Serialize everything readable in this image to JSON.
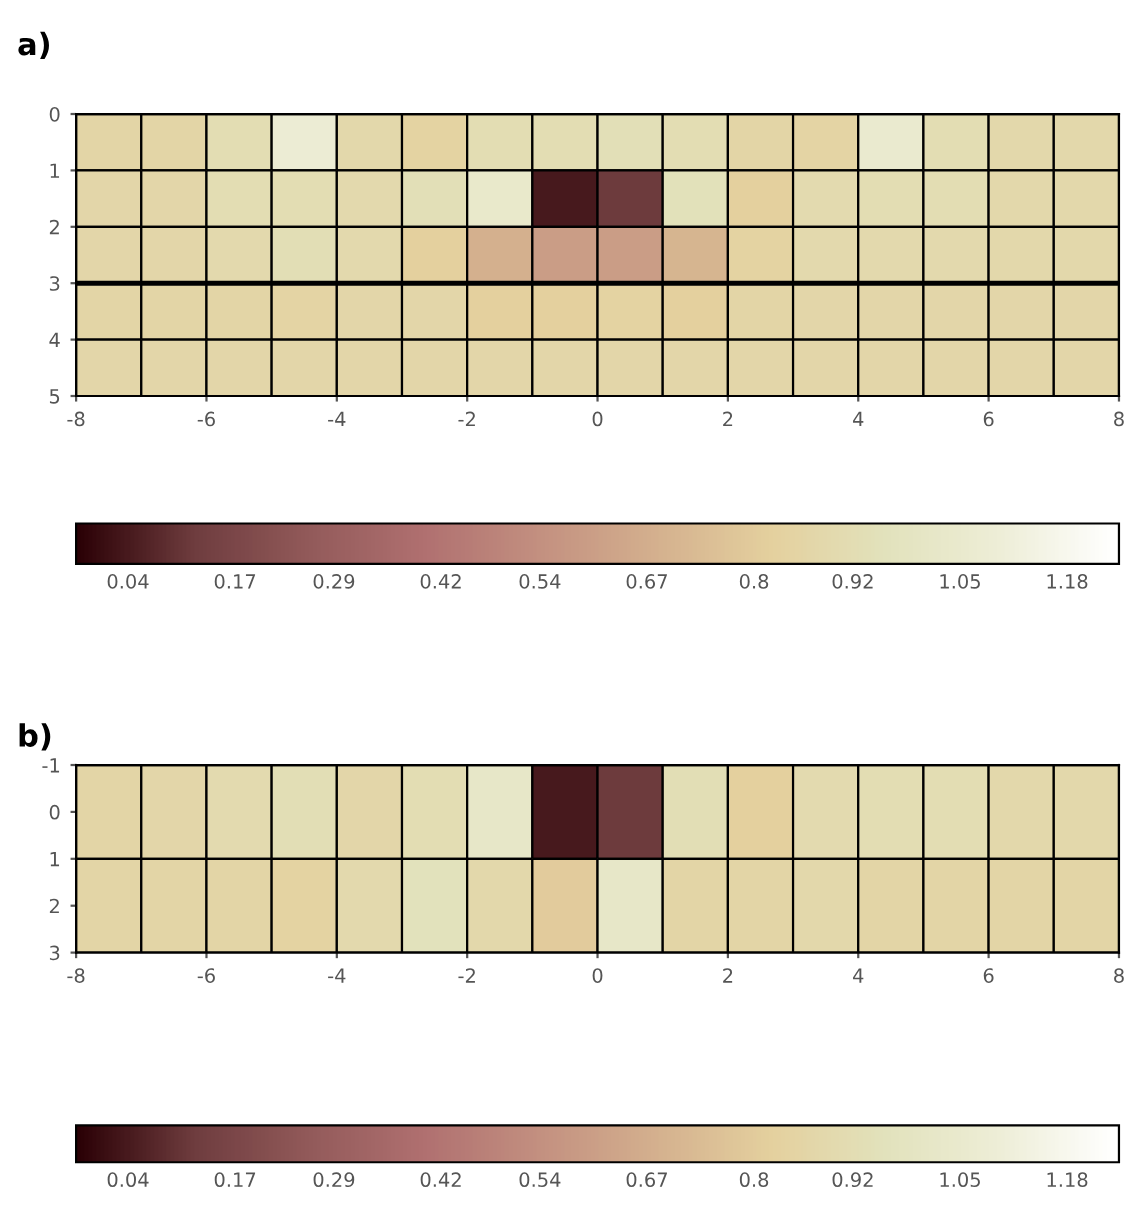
{
  "chart_data": [
    {
      "type": "heatmap",
      "title": "a)",
      "xlim": [
        -8,
        8
      ],
      "ylim": [
        5,
        0
      ],
      "xticks": [
        -8,
        -6,
        -4,
        -2,
        0,
        2,
        4,
        6,
        8
      ],
      "yticks": [
        0,
        1,
        2,
        3,
        4,
        5
      ],
      "cells": [
        [
          0.86,
          0.86,
          0.92,
          1.08,
          0.88,
          0.84,
          0.92,
          0.92,
          0.94,
          0.92,
          0.86,
          0.85,
          1.06,
          0.92,
          0.88,
          0.88
        ],
        [
          0.87,
          0.87,
          0.92,
          0.92,
          0.89,
          0.94,
          1.04,
          0.04,
          0.12,
          0.95,
          0.82,
          0.9,
          0.92,
          0.92,
          0.88,
          0.88
        ],
        [
          0.87,
          0.87,
          0.89,
          0.93,
          0.89,
          0.82,
          0.68,
          0.6,
          0.6,
          0.7,
          0.84,
          0.89,
          0.89,
          0.89,
          0.88,
          0.88
        ],
        [
          0.86,
          0.86,
          0.86,
          0.85,
          0.87,
          0.87,
          0.82,
          0.82,
          0.84,
          0.82,
          0.86,
          0.87,
          0.87,
          0.87,
          0.87,
          0.87
        ],
        [
          0.87,
          0.87,
          0.87,
          0.87,
          0.87,
          0.87,
          0.87,
          0.87,
          0.87,
          0.87,
          0.87,
          0.87,
          0.87,
          0.87,
          0.87,
          0.87
        ]
      ],
      "ref_lines": [
        {
          "axis": "y",
          "value": 3,
          "color": "#000000"
        }
      ],
      "clim": [
        -0.023,
        1.243
      ],
      "cticks": [
        0.04,
        0.17,
        0.29,
        0.42,
        0.54,
        0.67,
        0.8,
        0.92,
        1.05,
        1.18
      ]
    },
    {
      "type": "heatmap",
      "title": "b)",
      "xlim": [
        -8,
        8
      ],
      "ylim": [
        3,
        -1
      ],
      "xticks": [
        -8,
        -6,
        -4,
        -2,
        0,
        2,
        4,
        6,
        8
      ],
      "yticks": [
        -1,
        0,
        1,
        2,
        3
      ],
      "cells": [
        [
          0.86,
          0.87,
          0.9,
          0.93,
          0.87,
          0.92,
          1.02,
          0.04,
          0.12,
          0.93,
          0.82,
          0.9,
          0.92,
          0.92,
          0.88,
          0.88
        ],
        [
          0.86,
          0.86,
          0.86,
          0.84,
          0.89,
          0.96,
          0.88,
          0.8,
          1.02,
          0.86,
          0.86,
          0.88,
          0.86,
          0.86,
          0.86,
          0.86
        ]
      ],
      "clim": [
        -0.023,
        1.243
      ],
      "cticks": [
        0.04,
        0.17,
        0.29,
        0.42,
        0.54,
        0.67,
        0.8,
        0.92,
        1.05,
        1.18
      ]
    }
  ]
}
